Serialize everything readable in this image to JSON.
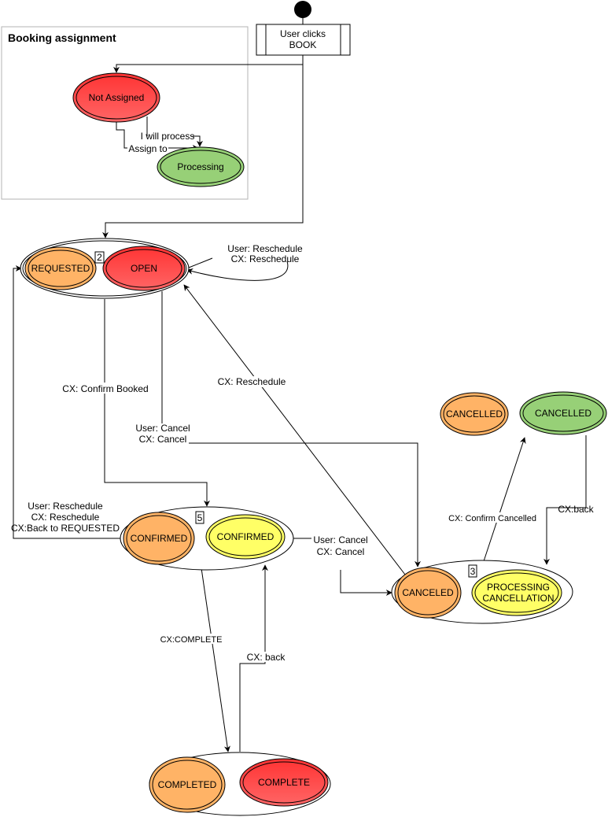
{
  "colors": {
    "red": "#ff3b3b",
    "orange": "#ffb366",
    "green": "#97d077",
    "yellow": "#ffff66",
    "frame": "#b3b3b3"
  },
  "start": {
    "label_line1": "User clicks",
    "label_line2": "BOOK"
  },
  "booking_assignment": {
    "title": "Booking assignment",
    "not_assigned": "Not Assigned",
    "processing": "Processing",
    "edge_assign_to": "Assign to",
    "edge_i_will_process": "I will process"
  },
  "group_open": {
    "badge": "2",
    "requested": "REQUESTED",
    "open": "OPEN"
  },
  "group_confirmed": {
    "badge": "5",
    "confirmed_orange": "CONFIRMED",
    "confirmed_yellow": "CONFIRMED"
  },
  "group_canceled": {
    "badge": "3",
    "canceled": "CANCELED",
    "processing_line1": "PROCESSING",
    "processing_line2": "CANCELLATION"
  },
  "cancelled_states": {
    "orange": "CANCELLED",
    "green": "CANCELLED"
  },
  "group_complete": {
    "completed": "COMPLETED",
    "complete": "COMPLETE"
  },
  "edges": {
    "self_reschedule": [
      "User: Reschedule",
      "CX: Reschedule"
    ],
    "confirm_booked": "CX: Confirm Booked",
    "open_cancel": [
      "User: Cancel",
      "CX: Cancel"
    ],
    "cx_reschedule": "CX: Reschedule",
    "back_to_requested": [
      "User: Reschedule",
      "CX: Reschedule",
      "CX:Back to REQUESTED"
    ],
    "confirmed_cancel": [
      "User: Cancel",
      "CX: Cancel"
    ],
    "confirm_cancelled": "CX: Confirm Cancelled",
    "cx_back_cancel": "CX:back",
    "cx_complete": "CX:COMPLETE",
    "cx_back_complete": "CX: back"
  }
}
